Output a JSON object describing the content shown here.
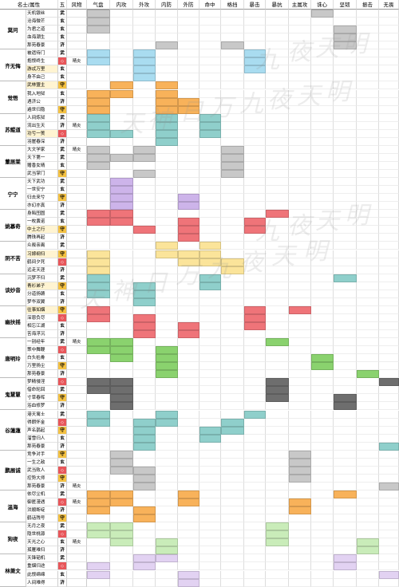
{
  "headers": [
    "名士/属性",
    "五质",
    "风物",
    "气盘",
    "内攻",
    "外攻",
    "内防",
    "外防",
    "命中",
    "格挡",
    "暴击",
    "暴抗",
    "主属攻",
    "诛心",
    "坚韧",
    "振击",
    "无畏"
  ],
  "elem_labels": {
    "wu": "武",
    "xuan": "玄",
    "ji": "济",
    "shou": "守",
    "xin": "◇"
  },
  "wind_label": "晴炎",
  "watermarks": [
    "九",
    "夜",
    "天",
    "明",
    "天",
    "神",
    "日",
    "万",
    "九",
    "夜",
    "天",
    "明",
    "九",
    "夜",
    "天",
    "明",
    "天",
    "神",
    "日",
    "万",
    "九",
    "夜",
    "天",
    "明"
  ],
  "colors": {
    "gray": "#c8c8c8",
    "blue": "#a9dcf0",
    "orange": "#f8b25a",
    "teal": "#8fcfcb",
    "purple": "#cdb4ea",
    "red": "#ef7479",
    "yellow": "#fbe49a",
    "green": "#8ad26e",
    "dark": "#6e6e6e",
    "lgreen": "#c9ecb9",
    "lpurple": "#e2d2f2"
  },
  "groups": [
    {
      "name": "莫问",
      "rows": [
        {
          "s": "天机银丝",
          "e": "wu",
          "c": {
            "3": "gray",
            "13": "gray"
          }
        },
        {
          "s": "沧海微芒",
          "e": "xuan",
          "c": {
            "3": "gray"
          }
        },
        {
          "s": "为君之道",
          "e": "xuan",
          "c": {
            "3": "gray",
            "14": "gray"
          }
        },
        {
          "s": "血海潮生",
          "e": "xuan",
          "c": {
            "14": "gray"
          }
        },
        {
          "s": "那苑春景",
          "e": "ji",
          "c": {
            "6": "gray",
            "9": "gray",
            "14": "gray"
          }
        }
      ]
    },
    {
      "name": "齐无悔",
      "rows": [
        {
          "s": "被遗待门",
          "e": "wu",
          "c": {
            "3": "blue",
            "5": "blue",
            "10": "blue"
          }
        },
        {
          "s": "抱恨终生",
          "e": "xin",
          "w": true,
          "c": {
            "3": "blue",
            "5": "blue",
            "10": "blue"
          }
        },
        {
          "s": "游忒万里",
          "e": "xuan",
          "hl": true,
          "c": {
            "5": "blue",
            "10": "blue"
          }
        },
        {
          "s": "身不由己",
          "e": "xuan",
          "c": {
            "5": "blue"
          }
        }
      ]
    },
    {
      "name": "觉悟",
      "rows": [
        {
          "s": "武林盟主",
          "e": "shou",
          "hl": true,
          "c": {
            "4": "orange",
            "6": "orange"
          }
        },
        {
          "s": "我入地狱",
          "e": "xuan",
          "c": {
            "3": "orange",
            "4": "orange",
            "6": "orange"
          }
        },
        {
          "s": "遇济公",
          "e": "ji",
          "c": {
            "3": "orange",
            "6": "orange",
            "7": "orange"
          }
        },
        {
          "s": "遍世归隐",
          "e": "shou",
          "c": {
            "3": "orange",
            "6": "orange",
            "7": "orange"
          }
        }
      ]
    },
    {
      "name": "苏鲲道",
      "rows": [
        {
          "s": "人间炼狱",
          "e": "wu",
          "c": {
            "3": "teal",
            "6": "teal",
            "8": "teal"
          }
        },
        {
          "s": "流出生天",
          "e": "ji",
          "w": true,
          "c": {
            "3": "teal",
            "6": "teal",
            "8": "teal"
          }
        },
        {
          "s": "功亏一篑",
          "e": "xin",
          "hl": true,
          "c": {
            "3": "teal",
            "4": "teal",
            "6": "teal",
            "8": "teal"
          }
        },
        {
          "s": "羽崖春深",
          "e": "ji",
          "c": {
            "6": "teal"
          }
        }
      ]
    },
    {
      "name": "董居棠",
      "rows": [
        {
          "s": "大文学家",
          "e": "wu",
          "w": true,
          "c": {
            "3": "gray",
            "5": "gray",
            "9": "gray"
          }
        },
        {
          "s": "天下第一",
          "e": "wu",
          "c": {
            "3": "gray",
            "4": "gray",
            "5": "gray",
            "9": "gray"
          }
        },
        {
          "s": "赠香女晴",
          "e": "xuan",
          "c": {
            "3": "gray",
            "9": "gray"
          }
        },
        {
          "s": "武当掌门",
          "e": "shou",
          "c": {
            "5": "gray",
            "9": "gray"
          }
        }
      ]
    },
    {
      "name": "宁宁",
      "rows": [
        {
          "s": "天下武功",
          "e": "wu",
          "c": {
            "4": "purple"
          }
        },
        {
          "s": "一世安宁",
          "e": "xuan",
          "c": {
            "4": "purple"
          }
        },
        {
          "s": "归去来兮",
          "e": "shou",
          "c": {
            "4": "purple",
            "7": "purple"
          }
        },
        {
          "s": "亦幻亦真",
          "e": "ji",
          "c": {
            "4": "purple",
            "7": "purple"
          }
        }
      ]
    },
    {
      "name": "姚慕奇",
      "rows": [
        {
          "s": "身陷囹圄",
          "e": "wu",
          "c": {
            "3": "red",
            "4": "red",
            "11": "red"
          }
        },
        {
          "s": "一枚黄诺",
          "e": "xuan",
          "c": {
            "3": "red",
            "4": "red",
            "7": "red",
            "10": "red"
          }
        },
        {
          "s": "中土之行",
          "e": "shou",
          "hl": true,
          "c": {
            "5": "red",
            "7": "red",
            "10": "red"
          }
        },
        {
          "s": "腾珠再起",
          "e": "ji",
          "c": {
            "7": "red"
          }
        }
      ]
    },
    {
      "name": "阴不苦",
      "rows": [
        {
          "s": "众叛亲离",
          "e": "wu",
          "c": {
            "6": "yellow",
            "8": "yellow"
          }
        },
        {
          "s": "习嫁纲归",
          "e": "shou",
          "hl": true,
          "c": {
            "3": "yellow",
            "6": "yellow",
            "7": "yellow",
            "8": "yellow"
          }
        },
        {
          "s": "鹤间夕死",
          "e": "xin",
          "c": {
            "3": "yellow",
            "7": "yellow",
            "8": "yellow",
            "9": "yellow"
          }
        },
        {
          "s": "远走天涯",
          "e": "ji",
          "c": {
            "3": "yellow",
            "9": "yellow"
          }
        }
      ]
    },
    {
      "name": "谈妙音",
      "rows": [
        {
          "s": "沉梦不归",
          "e": "wu",
          "c": {
            "3": "teal",
            "8": "teal",
            "14": "teal"
          }
        },
        {
          "s": "青衫弟子",
          "e": "shou",
          "hl": true,
          "c": {
            "3": "teal",
            "5": "teal",
            "8": "teal"
          }
        },
        {
          "s": "分道扬镳",
          "e": "xuan",
          "c": {
            "3": "teal",
            "5": "teal"
          }
        },
        {
          "s": "梦华双翼",
          "e": "ji",
          "c": {
            "5": "teal"
          }
        }
      ]
    },
    {
      "name": "幽扶摇",
      "rows": [
        {
          "s": "往事如烟",
          "e": "shou",
          "hl": true,
          "c": {
            "3": "red",
            "10": "red",
            "12": "red"
          }
        },
        {
          "s": "深恩负尽",
          "e": "xin",
          "c": {
            "3": "red",
            "5": "red",
            "10": "red"
          }
        },
        {
          "s": "相忘江湖",
          "e": "xuan",
          "c": {
            "5": "red",
            "7": "red",
            "10": "red"
          }
        },
        {
          "s": "苦海浮沉",
          "e": "ji",
          "c": {
            "5": "red",
            "7": "red"
          }
        }
      ]
    },
    {
      "name": "唐明玲",
      "rows": [
        {
          "s": "一别经年",
          "e": "wu",
          "w": true,
          "c": {
            "3": "green",
            "4": "green",
            "11": "green"
          }
        },
        {
          "s": "策中舞鞭",
          "e": "xin",
          "c": {
            "3": "green",
            "4": "green",
            "6": "green"
          }
        },
        {
          "s": "白头枯骨",
          "e": "xuan",
          "c": {
            "4": "green",
            "6": "green",
            "13": "green"
          }
        },
        {
          "s": "万里扬尘",
          "e": "shou",
          "c": {
            "6": "green",
            "13": "green"
          }
        },
        {
          "s": "那苑春景",
          "e": "ji",
          "c": {
            "6": "green",
            "15": "green"
          }
        }
      ]
    },
    {
      "name": "鬼慧慧",
      "rows": [
        {
          "s": "梦精侵淫",
          "e": "xin",
          "c": {
            "3": "dark",
            "4": "dark",
            "11": "dark",
            "16": "dark"
          }
        },
        {
          "s": "借命轮回",
          "e": "wu",
          "c": {
            "3": "dark",
            "4": "dark",
            "11": "dark"
          }
        },
        {
          "s": "寸草春晖",
          "e": "shou",
          "c": {
            "4": "dark",
            "11": "dark",
            "14": "dark"
          }
        },
        {
          "s": "浴血修罗",
          "e": "ji",
          "c": {
            "4": "dark",
            "14": "dark"
          }
        }
      ]
    },
    {
      "name": "谷蓮蓮",
      "rows": [
        {
          "s": "港天寓士",
          "e": "wu",
          "c": {
            "3": "teal",
            "6": "teal",
            "10": "teal"
          }
        },
        {
          "s": "得朗怀金",
          "e": "xin",
          "c": {
            "3": "teal",
            "5": "teal",
            "6": "teal",
            "9": "teal"
          }
        },
        {
          "s": "声名鹊起",
          "e": "shou",
          "c": {
            "5": "teal",
            "8": "teal",
            "9": "teal"
          }
        },
        {
          "s": "溜雪归人",
          "e": "xuan",
          "c": {
            "5": "teal",
            "8": "teal"
          }
        },
        {
          "s": "那苑春景",
          "e": "ji",
          "c": {
            "5": "teal",
            "16": "teal"
          }
        }
      ]
    },
    {
      "name": "鹏展诚",
      "rows": [
        {
          "s": "竞争对手",
          "e": "shou",
          "c": {
            "4": "gray",
            "12": "gray"
          }
        },
        {
          "s": "一生之敌",
          "e": "xuan",
          "c": {
            "4": "gray",
            "12": "gray"
          }
        },
        {
          "s": "武当败人",
          "e": "xin",
          "c": {
            "4": "gray",
            "5": "gray",
            "12": "gray"
          }
        },
        {
          "s": "控势大师",
          "e": "shou",
          "c": {
            "5": "gray",
            "12": "gray"
          }
        },
        {
          "s": "那苑春景",
          "e": "ji",
          "w": true,
          "c": {
            "5": "gray",
            "16": "gray"
          }
        }
      ]
    },
    {
      "name": "温海",
      "rows": [
        {
          "s": "依尽尘机",
          "e": "wu",
          "c": {
            "3": "orange",
            "4": "orange",
            "7": "orange",
            "14": "orange"
          }
        },
        {
          "s": "御匿漫遇",
          "e": "xin",
          "w": true,
          "c": {
            "3": "orange",
            "4": "orange",
            "7": "orange",
            "12": "orange"
          }
        },
        {
          "s": "洪顺断绽",
          "e": "ji",
          "c": {
            "3": "orange",
            "5": "orange",
            "12": "orange"
          }
        },
        {
          "s": "鹤话残号",
          "e": "shou",
          "c": {
            "5": "orange"
          }
        }
      ]
    },
    {
      "name": "狗夜",
      "rows": [
        {
          "s": "无月之夜",
          "e": "wu",
          "c": {
            "3": "lgreen",
            "4": "lgreen",
            "11": "lgreen"
          }
        },
        {
          "s": "隐世桃源",
          "e": "xin",
          "c": {
            "3": "lgreen",
            "4": "lgreen",
            "11": "lgreen"
          }
        },
        {
          "s": "天光之心",
          "e": "xuan",
          "w": true,
          "c": {
            "4": "lgreen",
            "6": "lgreen",
            "11": "lgreen",
            "15": "lgreen"
          }
        },
        {
          "s": "孤雁难归",
          "e": "ji",
          "c": {
            "6": "lgreen",
            "15": "lgreen"
          }
        }
      ]
    },
    {
      "name": "林萧文",
      "rows": [
        {
          "s": "天锋韬机",
          "e": "wu",
          "c": {
            "5": "lpurple",
            "6": "lpurple",
            "14": "lpurple"
          }
        },
        {
          "s": "重烟归途",
          "e": "xin",
          "c": {
            "3": "lpurple",
            "5": "lpurple",
            "14": "lpurple"
          }
        },
        {
          "s": "此恨绵绵",
          "e": "xuan",
          "c": {
            "3": "lpurple",
            "7": "lpurple",
            "16": "lpurple"
          }
        },
        {
          "s": "人间难得",
          "e": "ji",
          "c": {
            "7": "lpurple"
          }
        }
      ]
    }
  ]
}
